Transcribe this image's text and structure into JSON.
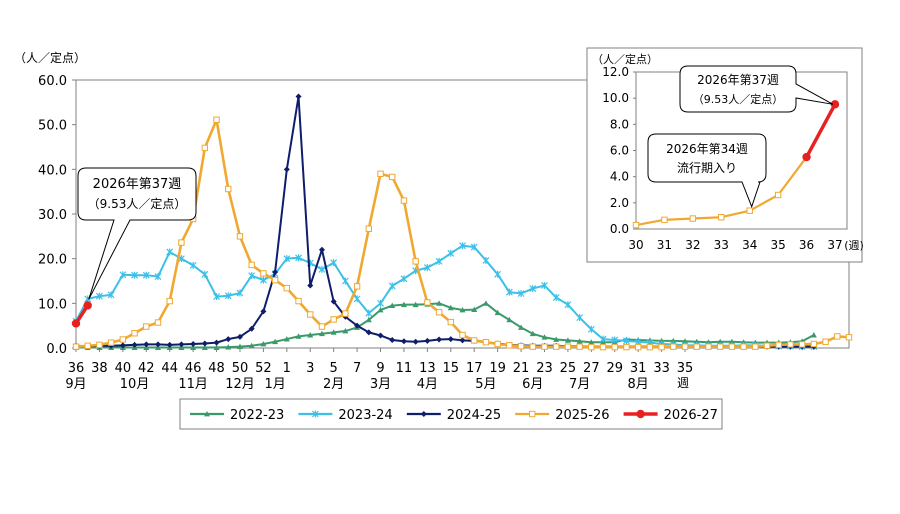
{
  "chart_data": [
    {
      "type": "line",
      "ylabel": "（人／定点）",
      "xlabel": "週",
      "ylim": [
        0,
        60
      ],
      "yticks": [
        "0.0",
        "10.0",
        "20.0",
        "30.0",
        "40.0",
        "50.0",
        "60.0"
      ],
      "week_ticks": [
        "36",
        "38",
        "40",
        "42",
        "44",
        "46",
        "48",
        "50",
        "52",
        "1",
        "3",
        "5",
        "7",
        "9",
        "11",
        "13",
        "15",
        "17",
        "19",
        "21",
        "23",
        "25",
        "27",
        "29",
        "31",
        "33",
        "35"
      ],
      "month_labels": [
        {
          "label": "9月",
          "week": "36"
        },
        {
          "label": "10月",
          "week": "41"
        },
        {
          "label": "11月",
          "week": "46"
        },
        {
          "label": "12月",
          "week": "50"
        },
        {
          "label": "1月",
          "week": "1"
        },
        {
          "label": "2月",
          "week": "6"
        },
        {
          "label": "3月",
          "week": "10"
        },
        {
          "label": "4月",
          "week": "14"
        },
        {
          "label": "5月",
          "week": "19"
        },
        {
          "label": "6月",
          "week": "23"
        },
        {
          "label": "7月",
          "week": "27"
        },
        {
          "label": "8月",
          "week": "32"
        }
      ],
      "series": [
        {
          "name": "2022-23",
          "color": "#3a9a6a",
          "marker": "triangle",
          "values": [
            0.1,
            0.1,
            0.1,
            0.1,
            0.1,
            0.1,
            0.1,
            0.1,
            0.1,
            0.1,
            0.1,
            0.1,
            0.1,
            0.2,
            0.3,
            0.5,
            0.9,
            1.4,
            2.0,
            2.6,
            2.9,
            3.2,
            3.5,
            3.8,
            4.6,
            6.3,
            8.5,
            9.5,
            9.7,
            9.7,
            9.8,
            10.0,
            9.0,
            8.5,
            8.6,
            10.0,
            7.9,
            6.3,
            4.6,
            3.2,
            2.4,
            1.9,
            1.7,
            1.5,
            1.3,
            1.3,
            1.3,
            1.9,
            1.8,
            1.7,
            1.6,
            1.6,
            1.5,
            1.4,
            1.3,
            1.4,
            1.4,
            1.3,
            1.2,
            1.2,
            1.2,
            1.3,
            1.5,
            2.9
          ]
        },
        {
          "name": "2023-24",
          "color": "#3cc0e8",
          "marker": "x",
          "values": [
            6.0,
            11.0,
            11.6,
            11.9,
            16.4,
            16.3,
            16.3,
            16.0,
            21.5,
            20.0,
            18.5,
            16.5,
            11.5,
            11.7,
            12.3,
            16.2,
            15.2,
            16.6,
            20.0,
            20.2,
            19.0,
            17.6,
            19.1,
            15.0,
            11.0,
            7.8,
            10.0,
            13.9,
            15.5,
            17.3,
            18.0,
            19.4,
            21.2,
            22.9,
            22.6,
            19.6,
            16.5,
            12.5,
            12.2,
            13.3,
            14.0,
            11.3,
            9.7,
            6.8,
            4.2,
            2.0,
            1.8,
            1.6,
            1.4,
            1.2,
            0.9,
            0.8,
            0.6,
            0.6,
            0.5,
            0.5,
            0.5,
            0.6,
            0.6,
            0.5,
            0.4,
            0.4,
            0.3,
            0.3
          ]
        },
        {
          "name": "2024-25",
          "color": "#0f1d6b",
          "marker": "diamond",
          "values": [
            0.5,
            0.4,
            0.5,
            0.5,
            0.6,
            0.7,
            0.8,
            0.8,
            0.7,
            0.8,
            0.9,
            1.0,
            1.2,
            2.0,
            2.5,
            4.3,
            8.2,
            17.0,
            40.0,
            56.3,
            14.0,
            22.0,
            10.4,
            7.0,
            5.0,
            3.5,
            2.8,
            1.8,
            1.5,
            1.4,
            1.6,
            1.9,
            2.0,
            1.7,
            1.6,
            1.3,
            1.0,
            0.7,
            0.6,
            0.5,
            0.5,
            0.5,
            0.4,
            0.4,
            0.3,
            0.3,
            0.3,
            0.3,
            0.3,
            0.3,
            0.3,
            0.3,
            0.3,
            0.3,
            0.3,
            0.3,
            0.3,
            0.3,
            0.3,
            0.3,
            0.3,
            0.3,
            0.3,
            0.3
          ]
        },
        {
          "name": "2025-26",
          "color": "#f0a830",
          "marker": "square",
          "values": [
            0.3,
            0.5,
            0.7,
            1.2,
            1.9,
            3.3,
            4.8,
            5.7,
            10.5,
            23.6,
            28.9,
            44.8,
            51.1,
            35.6,
            25.0,
            18.6,
            16.7,
            15.2,
            13.4,
            10.5,
            7.5,
            4.8,
            6.4,
            7.7,
            13.8,
            26.7,
            39.0,
            38.3,
            33.0,
            19.4,
            10.2,
            8.0,
            5.8,
            2.9,
            1.7,
            1.3,
            0.9,
            0.6,
            0.4,
            0.3,
            0.3,
            0.3,
            0.3,
            0.3,
            0.2,
            0.2,
            0.2,
            0.2,
            0.2,
            0.2,
            0.2,
            0.3,
            0.3,
            0.3,
            0.3,
            0.3,
            0.3,
            0.3,
            0.3,
            0.5,
            0.7,
            0.8,
            0.8,
            0.9,
            1.4,
            2.6,
            2.4
          ]
        },
        {
          "name": "2026-27",
          "color": "#e82020",
          "marker": "circle",
          "values": [
            5.5,
            9.53
          ]
        }
      ],
      "annotation": {
        "line1": "2026年第37週",
        "line2": "（9.53人／定点）"
      },
      "legend_placement": "bottom"
    },
    {
      "type": "line",
      "ylabel": "（人／定点）",
      "xlabel": "週",
      "ylim": [
        0,
        12
      ],
      "yticks": [
        "0.0",
        "2.0",
        "4.0",
        "6.0",
        "8.0",
        "10.0",
        "12.0"
      ],
      "x": [
        "30",
        "31",
        "32",
        "33",
        "34",
        "35",
        "36",
        "37"
      ],
      "series": [
        {
          "name": "2025-26",
          "color": "#f0a830",
          "marker": "square",
          "values": [
            0.3,
            0.7,
            0.8,
            0.9,
            1.4,
            2.6,
            5.5,
            9.53
          ]
        },
        {
          "name": "2026-27",
          "color": "#e82020",
          "marker": "circle",
          "values": [
            null,
            null,
            null,
            null,
            null,
            null,
            5.5,
            9.53
          ]
        }
      ],
      "annotations": [
        {
          "line1": "2026年第37週",
          "line2": "（9.53人／定点）"
        },
        {
          "line1": "2026年第34週",
          "line2": "流行期入り"
        }
      ]
    }
  ]
}
